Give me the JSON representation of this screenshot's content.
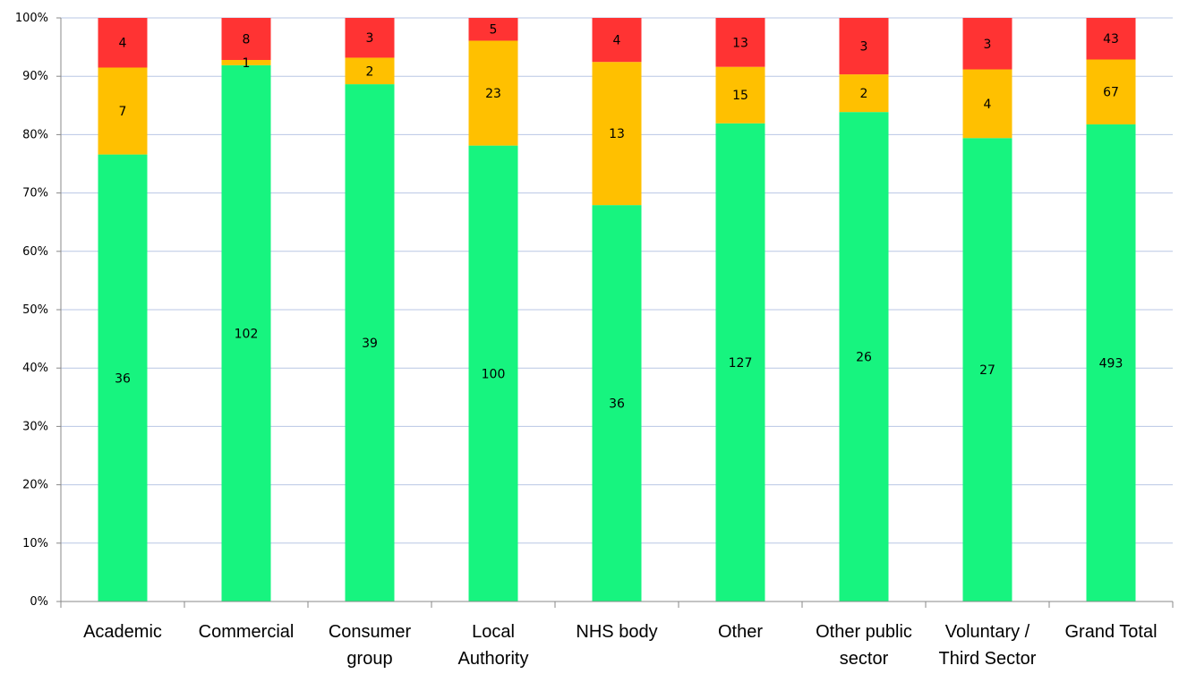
{
  "chart_data": {
    "type": "bar",
    "stacked": "percent",
    "categories": [
      [
        "Academic"
      ],
      [
        "Commercial"
      ],
      [
        "Consumer",
        "group"
      ],
      [
        "Local",
        "Authority"
      ],
      [
        "NHS body"
      ],
      [
        "Other"
      ],
      [
        "Other public",
        "sector"
      ],
      [
        "Voluntary /",
        "Third Sector"
      ],
      [
        "Grand Total"
      ]
    ],
    "series": [
      {
        "color": "#17F47F",
        "values": [
          36,
          102,
          39,
          100,
          36,
          127,
          26,
          27,
          493
        ]
      },
      {
        "color": "#FFC000",
        "values": [
          7,
          1,
          2,
          23,
          13,
          15,
          2,
          4,
          67
        ]
      },
      {
        "color": "#FF3333",
        "values": [
          4,
          8,
          3,
          5,
          4,
          13,
          3,
          3,
          43
        ]
      }
    ],
    "y_ticks": [
      "0%",
      "10%",
      "20%",
      "30%",
      "40%",
      "50%",
      "60%",
      "70%",
      "80%",
      "90%",
      "100%"
    ],
    "ylim": [
      0,
      100
    ],
    "grid": true,
    "grid_color": "#B9C7E4",
    "legend": "none"
  }
}
